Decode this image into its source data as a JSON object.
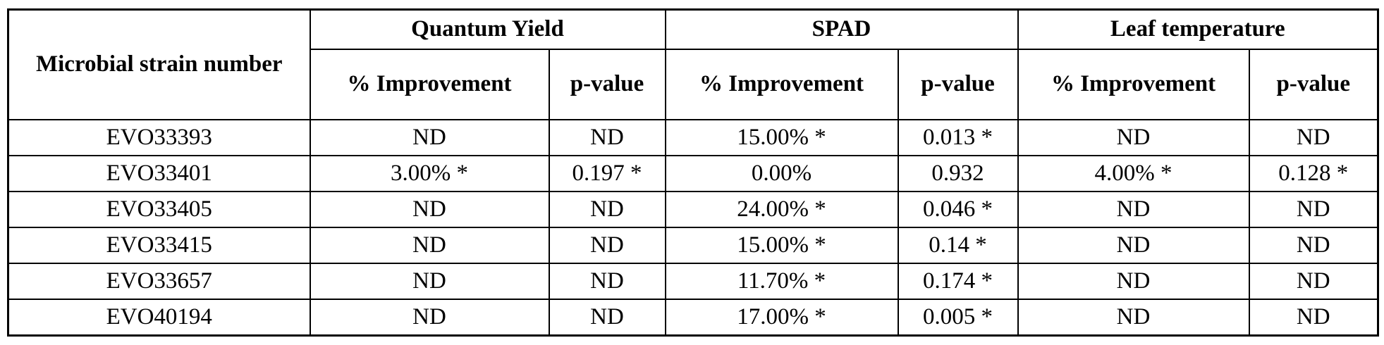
{
  "table": {
    "corner_header": "Microbial strain number",
    "groups": [
      {
        "label": "Quantum Yield",
        "improvement": "% Improvement",
        "pvalue": "p-value"
      },
      {
        "label": "SPAD",
        "improvement": "% Improvement",
        "pvalue": "p-value"
      },
      {
        "label": "Leaf temperature",
        "improvement": "% Improvement",
        "pvalue": "p-value"
      }
    ],
    "rows": [
      {
        "strain": "EVO33393",
        "cells": [
          "ND",
          "ND",
          "15.00% *",
          "0.013 *",
          "ND",
          "ND"
        ]
      },
      {
        "strain": "EVO33401",
        "cells": [
          "3.00% *",
          "0.197 *",
          "0.00%",
          "0.932",
          "4.00% *",
          "0.128 *"
        ]
      },
      {
        "strain": "EVO33405",
        "cells": [
          "ND",
          "ND",
          "24.00% *",
          "0.046 *",
          "ND",
          "ND"
        ]
      },
      {
        "strain": "EVO33415",
        "cells": [
          "ND",
          "ND",
          "15.00% *",
          "0.14 *",
          "ND",
          "ND"
        ]
      },
      {
        "strain": "EVO33657",
        "cells": [
          "ND",
          "ND",
          "11.70% *",
          "0.174 *",
          "ND",
          "ND"
        ]
      },
      {
        "strain": "EVO40194",
        "cells": [
          "ND",
          "ND",
          "17.00% *",
          "0.005 *",
          "ND",
          "ND"
        ]
      }
    ]
  }
}
